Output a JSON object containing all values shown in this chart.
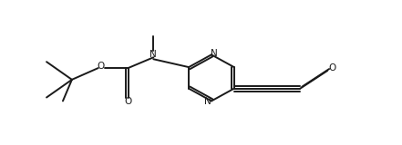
{
  "bg_color": "#ffffff",
  "line_color": "#1a1a1a",
  "line_width": 1.4,
  "figsize": [
    4.41,
    1.6
  ],
  "dpi": 100,
  "atoms": {
    "O_label": "O",
    "N_label": "N",
    "O_carbonyl_label": "O"
  }
}
